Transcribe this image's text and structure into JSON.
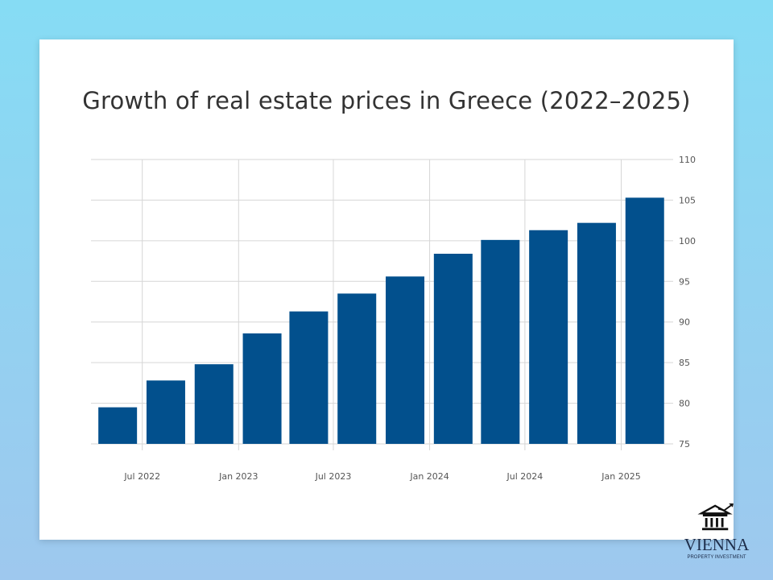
{
  "chart_data": {
    "type": "bar",
    "title": "Growth of real estate prices in Greece (2022–2025)",
    "xlabel": "",
    "ylabel": "",
    "x": [
      "2022-05-15",
      "2022-08-15",
      "2022-11-15",
      "2023-02-15",
      "2023-05-15",
      "2023-08-15",
      "2023-11-15",
      "2024-02-15",
      "2024-05-15",
      "2024-08-15",
      "2024-11-15",
      "2025-02-15"
    ],
    "values": [
      79.5,
      82.8,
      84.8,
      88.6,
      91.3,
      93.5,
      95.6,
      98.4,
      100.1,
      101.3,
      102.2,
      105.3
    ],
    "ylim": [
      75,
      110
    ],
    "yticks": [
      75,
      80,
      85,
      90,
      95,
      100,
      105,
      110
    ],
    "xlim": [
      "2022-03-25",
      "2025-04-01"
    ],
    "xticks": [
      {
        "date": "2022-07-01",
        "label": "Jul 2022"
      },
      {
        "date": "2023-01-01",
        "label": "Jan 2023"
      },
      {
        "date": "2023-07-01",
        "label": "Jul 2023"
      },
      {
        "date": "2024-01-01",
        "label": "Jan 2024"
      },
      {
        "date": "2024-07-01",
        "label": "Jul 2024"
      },
      {
        "date": "2025-01-01",
        "label": "Jan 2025"
      }
    ],
    "yaxis_side": "right",
    "grid": true,
    "bar_color": "#02508d"
  },
  "logo": {
    "name": "VIENNA",
    "tagline": "PROPERTY INVESTMENT"
  }
}
